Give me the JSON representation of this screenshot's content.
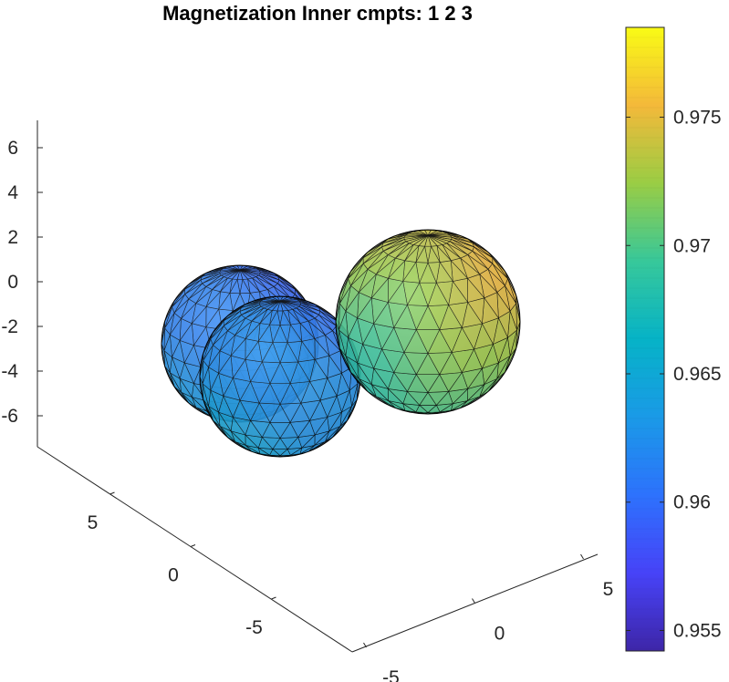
{
  "chart_data": {
    "type": "surface3d",
    "title": "Magnetization Inner cmpts: 1  2  3",
    "axes": {
      "x": {
        "ticks": [
          -5,
          0,
          5
        ],
        "labels": [
          "-5",
          "0",
          "5"
        ]
      },
      "y": {
        "ticks": [
          -5,
          0,
          5
        ],
        "labels": [
          "-5",
          "0",
          "5"
        ]
      },
      "z": {
        "ticks": [
          -6,
          -4,
          -2,
          0,
          2,
          4,
          6
        ],
        "labels": [
          "-6",
          "-4",
          "-2",
          "0",
          "2",
          "4",
          "6"
        ]
      }
    },
    "compartments": [
      {
        "id": 1,
        "mean_value": 0.9615,
        "value_range": [
          0.9595,
          0.966
        ]
      },
      {
        "id": 2,
        "mean_value": 0.9625,
        "value_range": [
          0.9585,
          0.966
        ]
      },
      {
        "id": 3,
        "mean_value": 0.972,
        "value_range": [
          0.967,
          0.9775
        ]
      }
    ],
    "colorbar": {
      "range": [
        0.9542,
        0.9785
      ],
      "ticks": [
        0.955,
        0.96,
        0.965,
        0.97,
        0.975
      ],
      "labels": [
        "0.955",
        "0.96",
        "0.965",
        "0.97",
        "0.975"
      ],
      "colormap": "parula"
    }
  }
}
